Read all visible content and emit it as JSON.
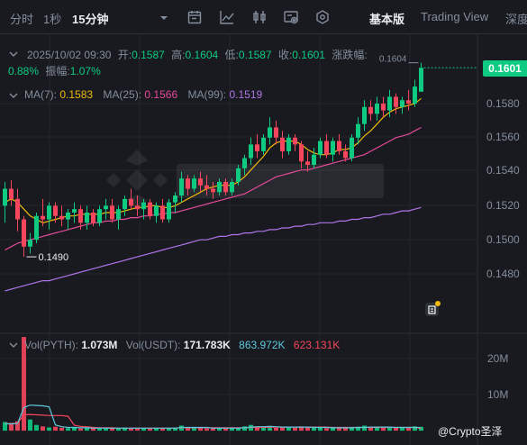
{
  "toolbar": {
    "intervals": [
      "分时",
      "1秒",
      "15分钟"
    ],
    "active_interval": "15分钟",
    "icons": [
      "chevron-down-icon",
      "calendar-icon",
      "draw-line-icon",
      "candlestick-icon",
      "indicator-settings-icon",
      "hexagon-settings-icon"
    ],
    "views": [
      "基本版",
      "Trading View",
      "深度"
    ],
    "active_view": "基本版"
  },
  "ohlc": {
    "datetime": "2025/10/02 09:30",
    "open_label": "开:",
    "open": "0.1587",
    "high_label": "高:",
    "high": "0.1604",
    "low_label": "低:",
    "low": "0.1587",
    "close_label": "收:",
    "close": "0.1601",
    "change_label": "涨跌幅:",
    "change": "0.88%",
    "amplitude_label": "振幅:",
    "amplitude": "1.07%"
  },
  "ma": {
    "ma7_label": "MA(7):",
    "ma7": "0.1583",
    "ma25_label": "MA(25):",
    "ma25": "0.1566",
    "ma99_label": "MA(99):",
    "ma99": "0.1519"
  },
  "volume_info": {
    "vol_base_label": "Vol(PYTH):",
    "vol_base": "1.073M",
    "vol_quote_label": "Vol(USDT):",
    "vol_quote": "171.783K",
    "ma5": "863.972K",
    "ma10": "623.131K"
  },
  "price_axis": {
    "current_price": "0.1601",
    "ticks": [
      "0.1580",
      "0.1560",
      "0.1540",
      "0.1520",
      "0.1500",
      "0.1480"
    ]
  },
  "volume_axis": {
    "ticks": [
      "20M",
      "10M"
    ]
  },
  "annotations": {
    "high_marker": "0.1604",
    "low_marker": "0.1490"
  },
  "watermark": "@Crypto圣泽",
  "colors": {
    "up": "#0ecb81",
    "down": "#f6465d",
    "ma7": "#f0b90b",
    "ma25": "#e64a9a",
    "ma99": "#b074e8",
    "background": "#181a20"
  },
  "chart_data": {
    "type": "candlestick",
    "interval": "15m",
    "y_range": [
      0.146,
      0.162
    ],
    "last_price": 0.1601,
    "candles": [
      [
        0.152,
        0.1534,
        0.151,
        0.153
      ],
      [
        0.153,
        0.1535,
        0.152,
        0.1524
      ],
      [
        0.1524,
        0.153,
        0.1505,
        0.1512
      ],
      [
        0.1512,
        0.1514,
        0.149,
        0.1496
      ],
      [
        0.1496,
        0.1504,
        0.1492,
        0.15
      ],
      [
        0.15,
        0.1516,
        0.1498,
        0.1514
      ],
      [
        0.1514,
        0.1524,
        0.1508,
        0.1512
      ],
      [
        0.1512,
        0.1522,
        0.1506,
        0.152
      ],
      [
        0.152,
        0.1522,
        0.151,
        0.1514
      ],
      [
        0.1514,
        0.152,
        0.1508,
        0.1512
      ],
      [
        0.1512,
        0.1518,
        0.1506,
        0.1516
      ],
      [
        0.1516,
        0.1522,
        0.151,
        0.1518
      ],
      [
        0.1518,
        0.152,
        0.1506,
        0.151
      ],
      [
        0.151,
        0.152,
        0.1506,
        0.1516
      ],
      [
        0.1516,
        0.1518,
        0.1508,
        0.151
      ],
      [
        0.151,
        0.152,
        0.1508,
        0.1518
      ],
      [
        0.1518,
        0.1524,
        0.1512,
        0.152
      ],
      [
        0.152,
        0.1524,
        0.151,
        0.1512
      ],
      [
        0.1512,
        0.152,
        0.1506,
        0.1518
      ],
      [
        0.1518,
        0.1526,
        0.1514,
        0.1524
      ],
      [
        0.1524,
        0.153,
        0.1518,
        0.152
      ],
      [
        0.152,
        0.1526,
        0.1514,
        0.1518
      ],
      [
        0.1518,
        0.1524,
        0.1512,
        0.1522
      ],
      [
        0.1522,
        0.1524,
        0.1512,
        0.1514
      ],
      [
        0.1514,
        0.1522,
        0.151,
        0.152
      ],
      [
        0.152,
        0.1524,
        0.151,
        0.1512
      ],
      [
        0.1512,
        0.1524,
        0.151,
        0.1522
      ],
      [
        0.1522,
        0.1528,
        0.1516,
        0.1526
      ],
      [
        0.1526,
        0.154,
        0.1522,
        0.1536
      ],
      [
        0.1536,
        0.1538,
        0.1526,
        0.153
      ],
      [
        0.153,
        0.1538,
        0.1528,
        0.1536
      ],
      [
        0.1536,
        0.154,
        0.1528,
        0.1532
      ],
      [
        0.1532,
        0.1538,
        0.1526,
        0.153
      ],
      [
        0.153,
        0.1534,
        0.1524,
        0.1528
      ],
      [
        0.1528,
        0.1536,
        0.1526,
        0.1534
      ],
      [
        0.1534,
        0.1536,
        0.1526,
        0.1528
      ],
      [
        0.1528,
        0.1536,
        0.1526,
        0.1534
      ],
      [
        0.1534,
        0.1544,
        0.1532,
        0.1542
      ],
      [
        0.1542,
        0.155,
        0.1538,
        0.1548
      ],
      [
        0.1548,
        0.156,
        0.1544,
        0.1556
      ],
      [
        0.1556,
        0.1562,
        0.1548,
        0.1552
      ],
      [
        0.1552,
        0.1562,
        0.155,
        0.156
      ],
      [
        0.156,
        0.1572,
        0.1556,
        0.1566
      ],
      [
        0.1566,
        0.157,
        0.1556,
        0.156
      ],
      [
        0.156,
        0.1564,
        0.1548,
        0.1552
      ],
      [
        0.1552,
        0.1562,
        0.155,
        0.156
      ],
      [
        0.156,
        0.1562,
        0.1552,
        0.1556
      ],
      [
        0.1556,
        0.1558,
        0.1542,
        0.1546
      ],
      [
        0.1546,
        0.1552,
        0.154,
        0.1544
      ],
      [
        0.1544,
        0.1554,
        0.1542,
        0.155
      ],
      [
        0.155,
        0.156,
        0.1548,
        0.1558
      ],
      [
        0.1558,
        0.1562,
        0.1548,
        0.155
      ],
      [
        0.155,
        0.156,
        0.1546,
        0.1558
      ],
      [
        0.1558,
        0.1562,
        0.155,
        0.1552
      ],
      [
        0.1552,
        0.1556,
        0.1546,
        0.1548
      ],
      [
        0.1548,
        0.1562,
        0.1546,
        0.156
      ],
      [
        0.156,
        0.1572,
        0.1556,
        0.1568
      ],
      [
        0.1568,
        0.1582,
        0.1564,
        0.1578
      ],
      [
        0.1578,
        0.1582,
        0.157,
        0.1574
      ],
      [
        0.1574,
        0.1584,
        0.157,
        0.158
      ],
      [
        0.158,
        0.1584,
        0.1572,
        0.1576
      ],
      [
        0.1576,
        0.1588,
        0.1572,
        0.1584
      ],
      [
        0.1584,
        0.1586,
        0.1574,
        0.1578
      ],
      [
        0.1578,
        0.1584,
        0.1574,
        0.1582
      ],
      [
        0.1582,
        0.1588,
        0.1576,
        0.158
      ],
      [
        0.158,
        0.1594,
        0.1578,
        0.159
      ],
      [
        0.1587,
        0.1604,
        0.1587,
        0.1601
      ]
    ],
    "ma7": [
      0.1522,
      0.1524,
      0.1522,
      0.1518,
      0.1514,
      0.1512,
      0.151,
      0.1511,
      0.1512,
      0.1513,
      0.1514,
      0.1514,
      0.1515,
      0.1515,
      0.1515,
      0.1515,
      0.1516,
      0.1516,
      0.1516,
      0.1517,
      0.1518,
      0.1519,
      0.1519,
      0.152,
      0.152,
      0.1519,
      0.1519,
      0.152,
      0.1522,
      0.1524,
      0.1526,
      0.1528,
      0.153,
      0.1531,
      0.1532,
      0.1532,
      0.1532,
      0.1534,
      0.1537,
      0.1541,
      0.1545,
      0.1549,
      0.1554,
      0.1557,
      0.1558,
      0.1558,
      0.1558,
      0.1556,
      0.1553,
      0.1551,
      0.155,
      0.155,
      0.1551,
      0.1553,
      0.1553,
      0.1554,
      0.1557,
      0.1561,
      0.1564,
      0.1568,
      0.1572,
      0.1575,
      0.1577,
      0.1578,
      0.1579,
      0.158,
      0.1583
    ],
    "ma25": [
      0.1494,
      0.1496,
      0.1498,
      0.1499,
      0.15,
      0.1501,
      0.1502,
      0.1503,
      0.1504,
      0.1505,
      0.1506,
      0.1507,
      0.1508,
      0.1509,
      0.151,
      0.151,
      0.1511,
      0.1511,
      0.1512,
      0.1512,
      0.1513,
      0.1513,
      0.1514,
      0.1514,
      0.1515,
      0.1515,
      0.1516,
      0.1516,
      0.1517,
      0.1518,
      0.1519,
      0.152,
      0.1521,
      0.1522,
      0.1523,
      0.1524,
      0.1525,
      0.1526,
      0.1527,
      0.1529,
      0.1531,
      0.1533,
      0.1535,
      0.1537,
      0.1538,
      0.1539,
      0.154,
      0.1541,
      0.1541,
      0.1542,
      0.1543,
      0.1544,
      0.1545,
      0.1546,
      0.1547,
      0.1548,
      0.1549,
      0.155,
      0.1552,
      0.1554,
      0.1556,
      0.1558,
      0.156,
      0.1561,
      0.1562,
      0.1564,
      0.1566
    ],
    "ma99": [
      0.147,
      0.1471,
      0.1472,
      0.1473,
      0.1474,
      0.1475,
      0.1476,
      0.1476,
      0.1477,
      0.1478,
      0.1479,
      0.148,
      0.1481,
      0.1482,
      0.1483,
      0.1484,
      0.1485,
      0.1486,
      0.1487,
      0.1488,
      0.1489,
      0.149,
      0.1491,
      0.1492,
      0.1493,
      0.1494,
      0.1495,
      0.1496,
      0.1497,
      0.1498,
      0.1499,
      0.15,
      0.15,
      0.1501,
      0.1502,
      0.1502,
      0.1503,
      0.1503,
      0.1504,
      0.1504,
      0.1505,
      0.1505,
      0.1506,
      0.1506,
      0.1507,
      0.1507,
      0.1508,
      0.1508,
      0.1509,
      0.1509,
      0.151,
      0.151,
      0.151,
      0.1511,
      0.1511,
      0.1512,
      0.1512,
      0.1513,
      0.1513,
      0.1514,
      0.1515,
      0.1515,
      0.1516,
      0.1517,
      0.1517,
      0.1518,
      0.1519
    ],
    "volume_y_range": [
      0,
      28000000
    ],
    "volume": [
      2.4,
      1.8,
      2.6,
      26.0,
      3.1,
      1.6,
      1.2,
      0.9,
      1.1,
      0.8,
      0.7,
      0.9,
      0.6,
      0.8,
      0.7,
      0.6,
      0.8,
      0.7,
      0.6,
      0.9,
      0.7,
      0.6,
      0.8,
      0.6,
      0.7,
      0.6,
      0.8,
      0.9,
      1.4,
      0.8,
      0.7,
      0.9,
      0.6,
      0.7,
      0.8,
      0.6,
      0.7,
      0.9,
      1.2,
      1.6,
      1.0,
      0.9,
      1.3,
      0.8,
      1.1,
      0.9,
      0.8,
      1.2,
      0.9,
      0.8,
      0.9,
      0.7,
      0.8,
      0.7,
      0.8,
      0.9,
      1.1,
      1.4,
      0.9,
      0.8,
      0.9,
      1.0,
      0.8,
      0.9,
      0.8,
      1.2,
      1.07
    ],
    "volume_units": "millions",
    "vol_ma5": [
      1.9,
      1.9,
      2.0,
      6.4,
      7.1,
      7.0,
      6.9,
      6.6,
      1.6,
      1.1,
      0.9,
      0.9,
      0.8,
      0.8,
      0.7,
      0.7,
      0.7,
      0.7,
      0.7,
      0.7,
      0.7,
      0.7,
      0.7,
      0.7,
      0.7,
      0.7,
      0.7,
      0.7,
      0.9,
      0.9,
      0.9,
      0.9,
      0.9,
      0.7,
      0.7,
      0.7,
      0.7,
      0.7,
      0.8,
      1.0,
      1.1,
      1.1,
      1.2,
      1.1,
      1.0,
      1.0,
      1.0,
      1.0,
      1.0,
      0.9,
      0.9,
      0.9,
      0.8,
      0.8,
      0.8,
      0.8,
      0.9,
      0.9,
      1.0,
      1.0,
      1.0,
      1.0,
      0.9,
      0.9,
      0.9,
      0.9,
      0.86
    ],
    "vol_ma10": [
      2.0,
      2.0,
      2.1,
      4.4,
      4.5,
      4.4,
      4.3,
      4.2,
      4.2,
      4.2,
      4.0,
      1.5,
      1.2,
      1.1,
      0.9,
      0.8,
      0.8,
      0.8,
      0.7,
      0.7,
      0.7,
      0.7,
      0.7,
      0.7,
      0.7,
      0.7,
      0.7,
      0.7,
      0.8,
      0.8,
      0.8,
      0.8,
      0.8,
      0.8,
      0.8,
      0.8,
      0.8,
      0.8,
      0.8,
      0.9,
      0.9,
      0.9,
      1.0,
      1.0,
      1.0,
      1.0,
      1.0,
      1.0,
      1.0,
      1.0,
      1.0,
      1.0,
      0.9,
      0.9,
      0.9,
      0.9,
      0.9,
      0.9,
      0.9,
      0.9,
      0.9,
      0.9,
      0.9,
      0.9,
      0.9,
      0.9,
      0.62
    ]
  }
}
